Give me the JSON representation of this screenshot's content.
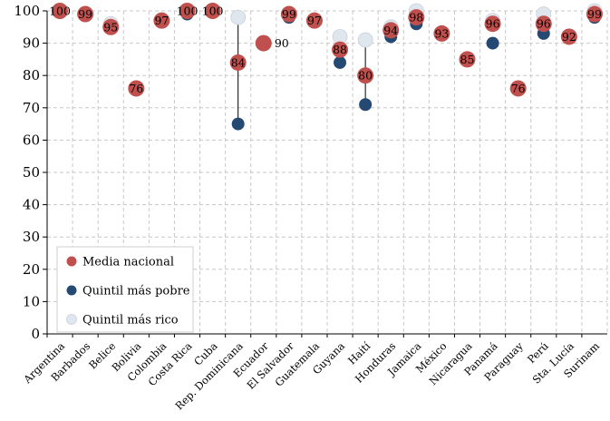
{
  "chart_data": {
    "type": "scatter",
    "title": "",
    "xlabel": "",
    "ylabel": "",
    "ylim": [
      0,
      100
    ],
    "yticks": [
      0,
      10,
      20,
      30,
      40,
      50,
      60,
      70,
      80,
      90,
      100
    ],
    "grid": true,
    "legend_position": "bottom-left",
    "categories": [
      "Argentina",
      "Barbados",
      "Belice",
      "Bolivia",
      "Colombia",
      "Costa Rica",
      "Cuba",
      "Rep. Dominicana",
      "Ecuador",
      "El Salvador",
      "Guatemala",
      "Guyana",
      "Haití",
      "Honduras",
      "Jamaica",
      "México",
      "Nicaragua",
      "Panamá",
      "Paraguay",
      "Perú",
      "Sta. Lucía",
      "Surinam"
    ],
    "series": [
      {
        "name": "Media nacional",
        "color": "#c0504d",
        "values": [
          100,
          99,
          95,
          76,
          97,
          100,
          100,
          84,
          90,
          99,
          97,
          88,
          80,
          94,
          98,
          93,
          85,
          96,
          76,
          96,
          92,
          99
        ],
        "labels": [
          "100",
          "99",
          "95",
          "76",
          "97",
          "100",
          "100",
          "84",
          "90",
          "99",
          "97",
          "88",
          "80",
          "94",
          "98",
          "93",
          "85",
          "96",
          "76",
          "96",
          "92",
          "99"
        ]
      },
      {
        "name": "Quintil más pobre",
        "color": "#244a73",
        "values": [
          null,
          null,
          null,
          null,
          null,
          99,
          null,
          65,
          null,
          98,
          null,
          84,
          71,
          92,
          96,
          null,
          null,
          90,
          null,
          93,
          null,
          98
        ]
      },
      {
        "name": "Quintil más rico",
        "color": "#dfe6ee",
        "values": [
          100,
          99,
          96,
          null,
          null,
          100,
          null,
          98,
          null,
          99,
          null,
          92,
          91,
          95,
          100,
          null,
          null,
          97,
          null,
          99,
          null,
          100
        ]
      }
    ],
    "range_lines": [
      {
        "category": "Rep. Dominicana",
        "from": 65,
        "to": 98
      },
      {
        "category": "Haití",
        "from": 71,
        "to": 91
      }
    ]
  }
}
